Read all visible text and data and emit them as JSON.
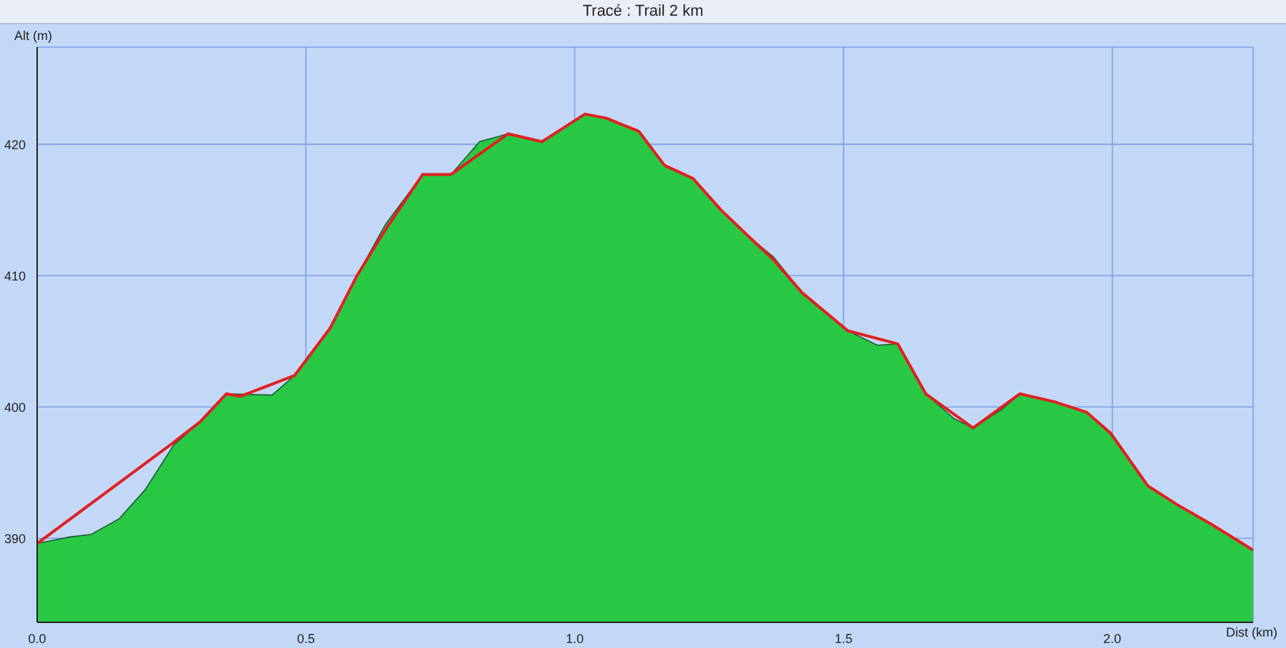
{
  "chart_data": {
    "type": "area",
    "title": "Tracé : Trail 2 km",
    "xlabel": "Dist (km)",
    "ylabel": "Alt (m)",
    "xlim": [
      0,
      2.262
    ],
    "ylim": [
      383.6,
      427.4
    ],
    "xticks": [
      {
        "value": 0,
        "label": "0.0"
      },
      0.5,
      {
        "value": 1,
        "label": "1.0"
      },
      1.5,
      {
        "value": 2,
        "label": "2.0"
      }
    ],
    "yticks": [
      390,
      400,
      410,
      420
    ],
    "grid": true,
    "series": [
      {
        "color": "#28c845",
        "x": [
          0,
          0.061,
          0.101,
          0.153,
          0.201,
          0.254,
          0.304,
          0.352,
          0.437,
          0.479,
          0.545,
          0.595,
          0.648,
          0.717,
          0.77,
          0.823,
          0.876,
          0.939,
          1.019,
          1.058,
          1.119,
          1.167,
          1.22,
          1.272,
          1.323,
          1.37,
          1.423,
          1.508,
          1.563,
          1.601,
          1.653,
          1.706,
          1.741,
          1.794,
          1.828,
          1.892,
          1.952,
          1.997,
          2.066,
          2.119,
          2.183,
          2.262
        ],
        "values": [
          389.6,
          390.1,
          390.3,
          391.5,
          393.7,
          397.1,
          398.9,
          401.0,
          400.9,
          402.4,
          406.0,
          410.0,
          413.9,
          417.7,
          417.7,
          420.2,
          420.8,
          420.2,
          422.3,
          422.0,
          421.0,
          418.4,
          417.4,
          415.0,
          413.0,
          411.4,
          408.7,
          405.8,
          404.7,
          404.8,
          401.0,
          399.1,
          398.4,
          399.8,
          401.0,
          400.4,
          399.6,
          398.0,
          394.0,
          392.6,
          391.1,
          389.1
        ]
      },
      {
        "type": "line",
        "color": "#e02020",
        "marker": "none",
        "line_style": "solid",
        "x": [
          0,
          0.254,
          0.304,
          0.352,
          0.378,
          0.479,
          0.545,
          0.595,
          0.648,
          0.717,
          0.77,
          0.876,
          0.939,
          1.019,
          1.058,
          1.119,
          1.167,
          1.22,
          1.272,
          1.323,
          1.37,
          1.423,
          1.508,
          1.601,
          1.653,
          1.741,
          1.828,
          1.892,
          1.952,
          1.997,
          2.066,
          2.119,
          2.183,
          2.262
        ],
        "values": [
          389.6,
          397.3,
          398.9,
          401.0,
          400.8,
          402.4,
          406.0,
          410.0,
          413.5,
          417.7,
          417.7,
          420.8,
          420.2,
          422.3,
          422.0,
          421.0,
          418.4,
          417.4,
          415.0,
          413.0,
          411.2,
          408.7,
          405.8,
          404.8,
          401.0,
          398.4,
          401.0,
          400.4,
          399.6,
          398.0,
          394.0,
          392.6,
          391.1,
          389.1
        ]
      }
    ]
  }
}
